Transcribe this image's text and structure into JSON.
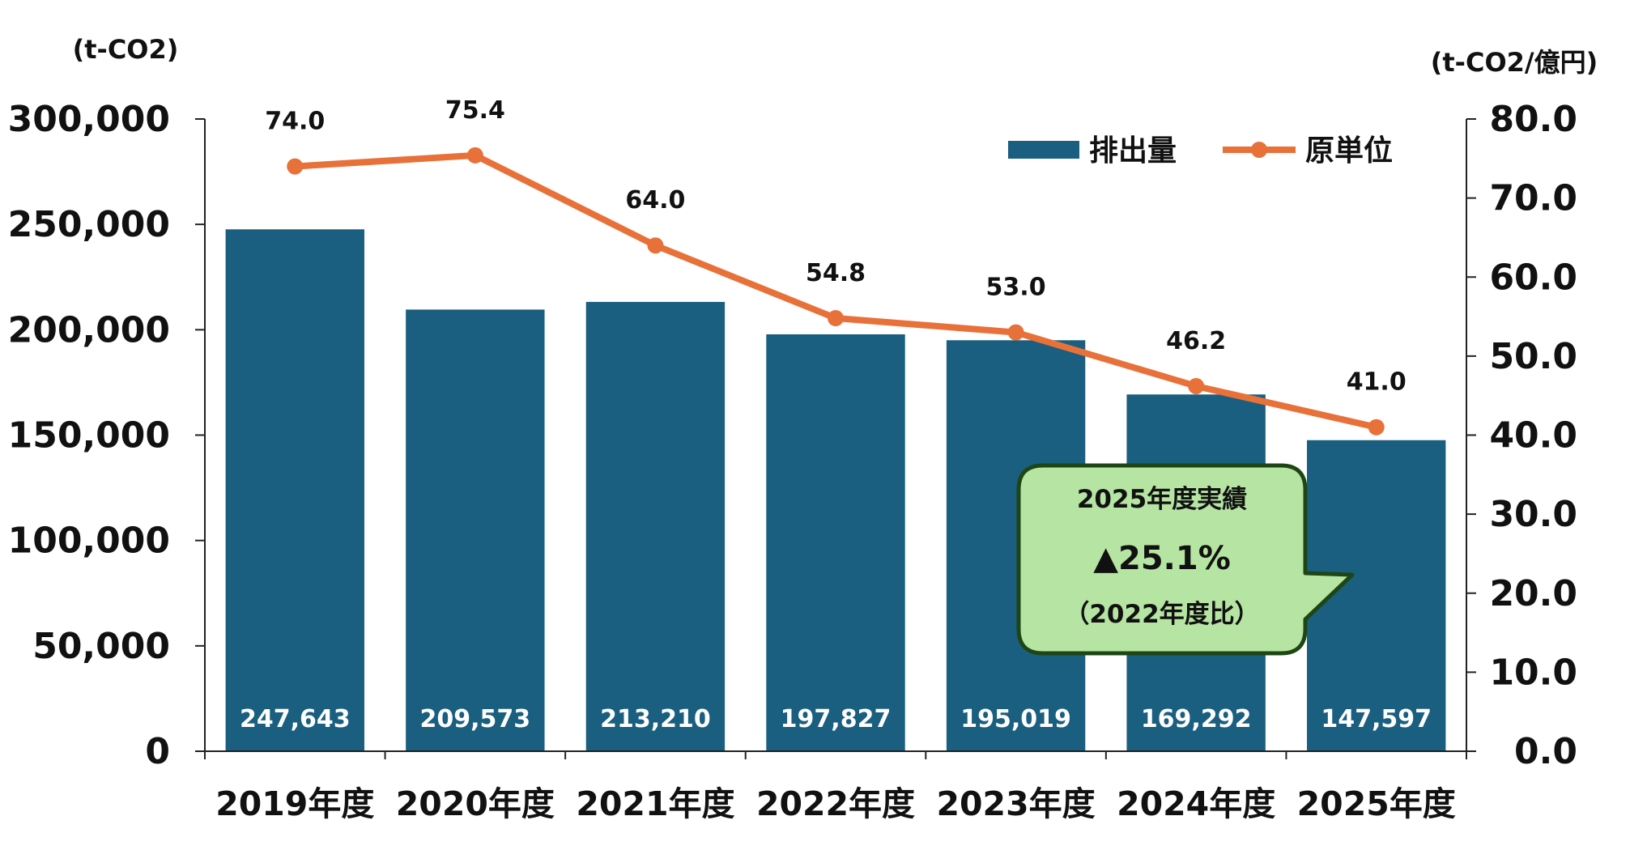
{
  "chart_data": {
    "type": "bar",
    "categories": [
      "2019年度",
      "2020年度",
      "2021年度",
      "2022年度",
      "2023年度",
      "2024年度",
      "2025年度"
    ],
    "series": [
      {
        "name": "排出量",
        "type": "bar",
        "axis": "left",
        "values": [
          247643,
          209573,
          213210,
          197827,
          195019,
          169292,
          147597
        ],
        "value_labels": [
          "247,643",
          "209,573",
          "213,210",
          "197,827",
          "195,019",
          "169,292",
          "147,597"
        ]
      },
      {
        "name": "原単位",
        "type": "line",
        "axis": "right",
        "values": [
          74.0,
          75.4,
          64.0,
          54.8,
          53.0,
          46.2,
          41.0
        ],
        "value_labels": [
          "74.0",
          "75.4",
          "64.0",
          "54.8",
          "53.0",
          "46.2",
          "41.0"
        ]
      }
    ],
    "left_axis": {
      "unit": "(t-CO2)",
      "ylim": [
        0,
        300000
      ],
      "ticks": [
        "0",
        "50,000",
        "100,000",
        "150,000",
        "200,000",
        "250,000",
        "300,000"
      ]
    },
    "right_axis": {
      "unit": "(t-CO2/億円)",
      "ylim": [
        0,
        80
      ],
      "ticks": [
        "0.0",
        "10.0",
        "20.0",
        "30.0",
        "40.0",
        "50.0",
        "60.0",
        "70.0",
        "80.0"
      ]
    },
    "legend": {
      "placement": "top-right",
      "bar_label": "排出量",
      "line_label": "原単位"
    },
    "callout": {
      "line1": "2025年度実績",
      "line2": "▲25.1%",
      "line3": "（2022年度比）"
    },
    "grid": false
  },
  "colors": {
    "bar": "#1a5e80",
    "line": "#e8713a",
    "callout_fill": "#b5e4a3",
    "callout_border": "#1e4614",
    "axis": "#222222"
  }
}
